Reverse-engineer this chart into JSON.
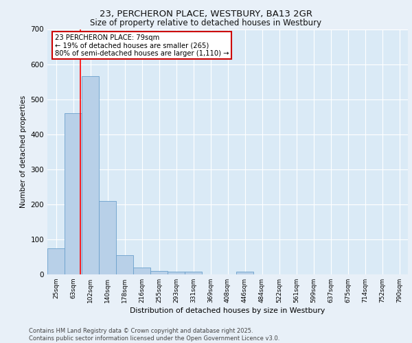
{
  "title_line1": "23, PERCHERON PLACE, WESTBURY, BA13 2GR",
  "title_line2": "Size of property relative to detached houses in Westbury",
  "xlabel": "Distribution of detached houses by size in Westbury",
  "ylabel": "Number of detached properties",
  "categories": [
    "25sqm",
    "63sqm",
    "102sqm",
    "140sqm",
    "178sqm",
    "216sqm",
    "255sqm",
    "293sqm",
    "331sqm",
    "369sqm",
    "408sqm",
    "446sqm",
    "484sqm",
    "522sqm",
    "561sqm",
    "599sqm",
    "637sqm",
    "675sqm",
    "714sqm",
    "752sqm",
    "790sqm"
  ],
  "values": [
    75,
    460,
    565,
    210,
    55,
    20,
    10,
    8,
    8,
    0,
    0,
    8,
    0,
    0,
    0,
    0,
    0,
    0,
    0,
    0,
    0
  ],
  "bar_color": "#b8d0e8",
  "bar_edge_color": "#6aa0cc",
  "annotation_text_line1": "23 PERCHERON PLACE: 79sqm",
  "annotation_text_line2": "← 19% of detached houses are smaller (265)",
  "annotation_text_line3": "80% of semi-detached houses are larger (1,110) →",
  "red_line_x": 79,
  "ylim": [
    0,
    700
  ],
  "yticks": [
    0,
    100,
    200,
    300,
    400,
    500,
    600,
    700
  ],
  "bg_color": "#daeaf6",
  "fig_bg_color": "#e8f0f8",
  "grid_color": "#ffffff",
  "footer_line1": "Contains HM Land Registry data © Crown copyright and database right 2025.",
  "footer_line2": "Contains public sector information licensed under the Open Government Licence v3.0.",
  "annotation_box_edge_color": "#cc0000",
  "bin_starts": [
    25,
    63,
    102,
    140,
    178,
    216,
    255,
    293,
    331,
    369,
    408,
    446,
    484,
    522,
    561,
    599,
    637,
    675,
    714,
    752,
    790
  ],
  "bin_width": 37
}
